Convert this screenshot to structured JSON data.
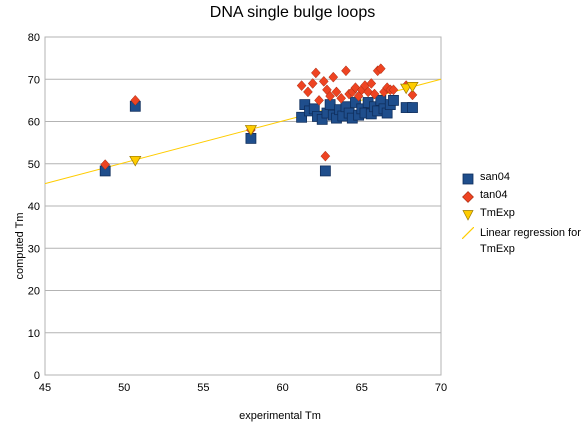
{
  "chart_data": {
    "type": "scatter",
    "title": "DNA single bulge loops",
    "xlabel": "experimental Tm",
    "ylabel": "computed Tm",
    "xlim": [
      45,
      70
    ],
    "ylim": [
      0,
      80
    ],
    "x_ticks": [
      "45",
      "50",
      "55",
      "60",
      "65",
      "70"
    ],
    "y_ticks": [
      "0",
      "10",
      "20",
      "30",
      "40",
      "50",
      "60",
      "70",
      "80"
    ],
    "grid": "horizontal",
    "legend_position": "right",
    "series": [
      {
        "name": "san04",
        "marker": "square",
        "color": "#1f4e8c",
        "points": [
          [
            48.8,
            48.3
          ],
          [
            50.7,
            63.6
          ],
          [
            58.0,
            56.0
          ],
          [
            62.7,
            48.3
          ],
          [
            61.2,
            61.0
          ],
          [
            61.4,
            64.0
          ],
          [
            61.7,
            62.5
          ],
          [
            62.0,
            63.0
          ],
          [
            62.2,
            61.2
          ],
          [
            62.5,
            60.5
          ],
          [
            62.8,
            62.0
          ],
          [
            63.0,
            64.0
          ],
          [
            63.2,
            61.5
          ],
          [
            63.4,
            60.8
          ],
          [
            63.6,
            62.8
          ],
          [
            63.8,
            61.3
          ],
          [
            64.0,
            63.5
          ],
          [
            64.2,
            62.0
          ],
          [
            64.4,
            60.8
          ],
          [
            64.6,
            64.5
          ],
          [
            64.8,
            61.5
          ],
          [
            65.0,
            63.0
          ],
          [
            65.2,
            62.0
          ],
          [
            65.4,
            64.5
          ],
          [
            65.6,
            61.8
          ],
          [
            65.8,
            63.5
          ],
          [
            66.0,
            62.5
          ],
          [
            66.2,
            65.0
          ],
          [
            66.4,
            63.0
          ],
          [
            66.6,
            62.0
          ],
          [
            66.8,
            64.0
          ],
          [
            67.0,
            65.0
          ],
          [
            67.8,
            63.3
          ],
          [
            68.2,
            63.3
          ]
        ]
      },
      {
        "name": "tan04",
        "marker": "diamond",
        "color": "#ee4422",
        "points": [
          [
            48.8,
            49.8
          ],
          [
            50.7,
            65.0
          ],
          [
            58.0,
            58.0
          ],
          [
            62.7,
            51.8
          ],
          [
            61.2,
            68.5
          ],
          [
            61.6,
            67.0
          ],
          [
            61.9,
            69.0
          ],
          [
            62.1,
            71.5
          ],
          [
            62.3,
            65.0
          ],
          [
            62.6,
            69.5
          ],
          [
            62.8,
            67.5
          ],
          [
            63.0,
            66.0
          ],
          [
            63.2,
            70.5
          ],
          [
            63.4,
            67.0
          ],
          [
            63.7,
            65.5
          ],
          [
            64.0,
            72.0
          ],
          [
            64.2,
            66.5
          ],
          [
            64.4,
            67.0
          ],
          [
            64.6,
            68.0
          ],
          [
            64.8,
            66.0
          ],
          [
            65.0,
            67.5
          ],
          [
            65.2,
            68.5
          ],
          [
            65.4,
            67.0
          ],
          [
            65.6,
            69.0
          ],
          [
            65.8,
            66.5
          ],
          [
            66.0,
            72.0
          ],
          [
            66.2,
            72.5
          ],
          [
            66.4,
            67.0
          ],
          [
            66.6,
            68.0
          ],
          [
            66.8,
            67.5
          ],
          [
            67.0,
            67.5
          ],
          [
            67.8,
            68.5
          ],
          [
            68.2,
            66.3
          ]
        ]
      },
      {
        "name": "TmExp",
        "marker": "triangle-down",
        "color": "#ffcc00",
        "points": [
          [
            50.7,
            50.7
          ],
          [
            58.0,
            58.0
          ],
          [
            67.8,
            67.8
          ],
          [
            68.2,
            68.2
          ]
        ]
      },
      {
        "name": "Linear regression for TmExp",
        "type": "line",
        "color": "#ffcc00",
        "points": [
          [
            45,
            45.3
          ],
          [
            70,
            70.0
          ]
        ]
      }
    ]
  }
}
